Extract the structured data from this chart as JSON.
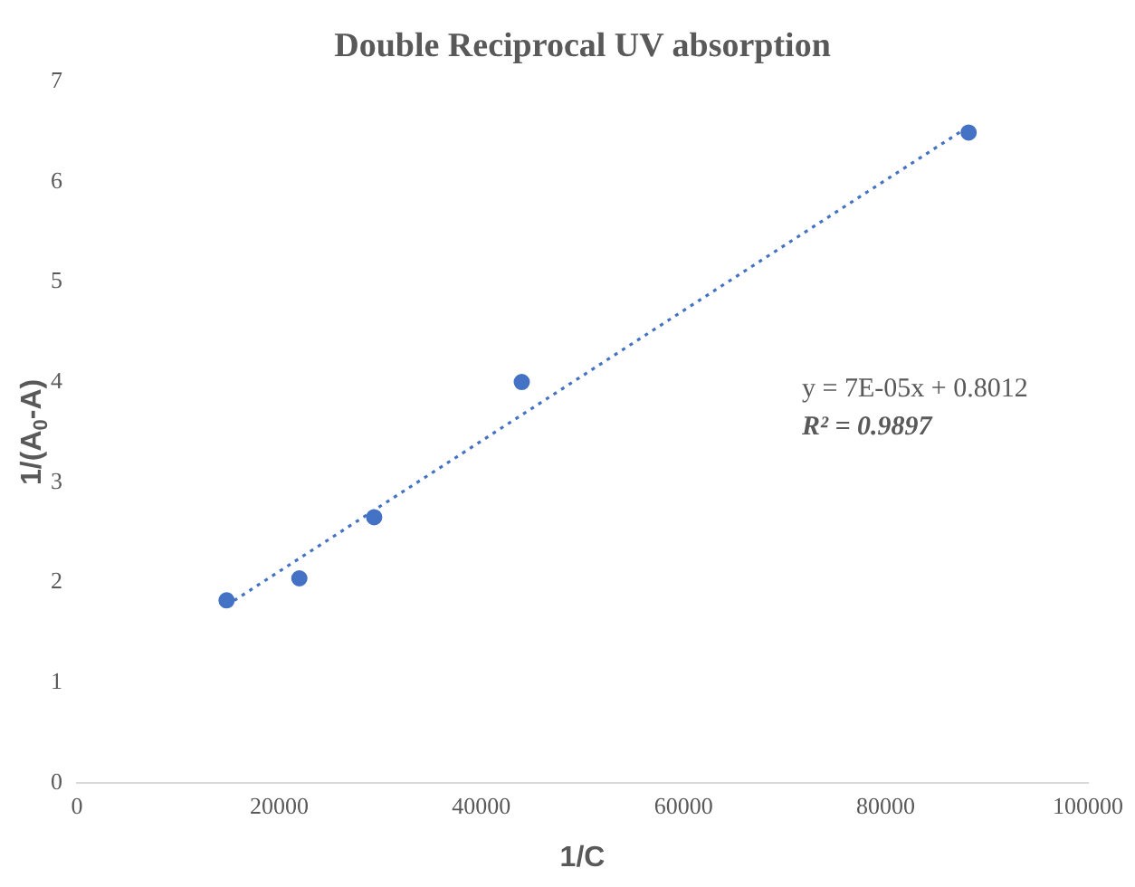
{
  "chart_data": {
    "type": "scatter",
    "title": "Double Reciprocal UV absorption",
    "xlabel": "1/C",
    "ylabel": "1/(A$_{0}$-A)",
    "x": [
      14800,
      22000,
      29400,
      44000,
      88200
    ],
    "series": [
      {
        "color": "#4472c4",
        "values": [
          1.82,
          2.04,
          2.65,
          4.0,
          6.49
        ],
        "marker": "circle"
      },
      {
        "type": "line",
        "color": "#4472c4",
        "x": [
          14800,
          88200
        ],
        "values": [
          1.77,
          6.55
        ],
        "line_style": "dotted",
        "marker": "none"
      }
    ],
    "xlim": [
      0,
      100000
    ],
    "xticks": [
      0,
      20000,
      40000,
      60000,
      80000,
      100000
    ],
    "ylim": [
      0,
      7
    ],
    "yticks": [
      0,
      1,
      2,
      3,
      4,
      5,
      6,
      7
    ],
    "annotations": [
      "y = 7E-05x + 0.8012",
      "R² = 0.9897"
    ],
    "grid": false,
    "legend": false
  }
}
